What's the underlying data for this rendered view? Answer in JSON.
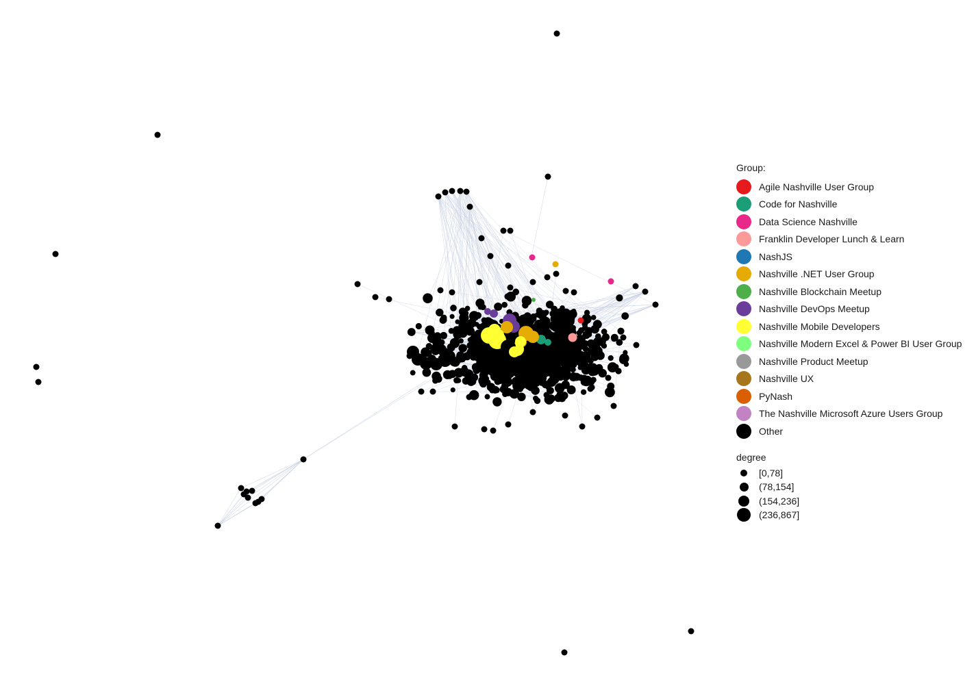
{
  "legend": {
    "group_title": "Group:",
    "groups": [
      {
        "label": "Agile Nashville User Group",
        "color": "#E41A1C"
      },
      {
        "label": "Code for Nashville",
        "color": "#1B9E77"
      },
      {
        "label": "Data Science Nashville",
        "color": "#E7298A"
      },
      {
        "label": "Franklin Developer Lunch & Learn",
        "color": "#FB9A99"
      },
      {
        "label": "NashJS",
        "color": "#1F78B4"
      },
      {
        "label": "Nashville .NET User Group",
        "color": "#E6AB02"
      },
      {
        "label": "Nashville Blockchain Meetup",
        "color": "#4DAF4A"
      },
      {
        "label": "Nashville DevOps Meetup",
        "color": "#6A3D9A"
      },
      {
        "label": "Nashville Mobile Developers",
        "color": "#FFFF33"
      },
      {
        "label": "Nashville Modern Excel & Power BI User Group",
        "color": "#7FFF7F"
      },
      {
        "label": "Nashville Product Meetup",
        "color": "#999999"
      },
      {
        "label": "Nashville UX",
        "color": "#A6761D"
      },
      {
        "label": "PyNash",
        "color": "#D95F02"
      },
      {
        "label": "The Nashville Microsoft Azure Users Group",
        "color": "#C183C1"
      },
      {
        "label": "Other",
        "color": "#000000"
      }
    ],
    "size_title": "degree",
    "sizes": [
      {
        "label": "[0,78]",
        "level": 1
      },
      {
        "label": "(78,154]",
        "level": 2
      },
      {
        "label": "(154,236]",
        "level": 3
      },
      {
        "label": "(236,867]",
        "level": 4
      }
    ]
  },
  "colors": {
    "edge": "#C9D2E3",
    "other_node": "#000000"
  }
}
